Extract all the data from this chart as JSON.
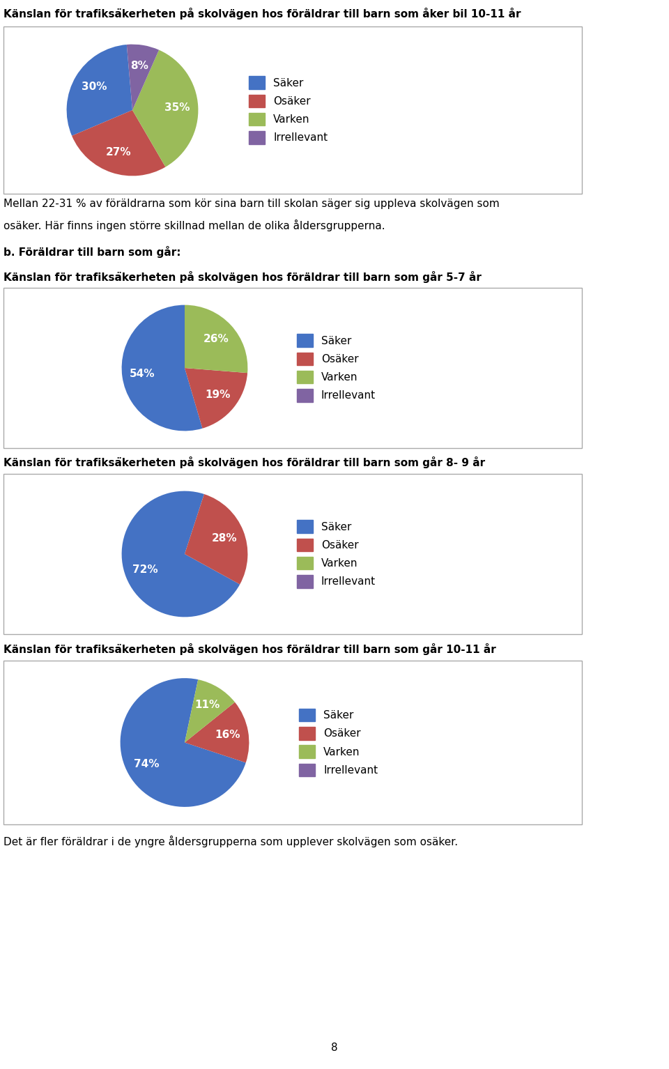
{
  "title1": "Känslan för trafiksäkerheten på skolvägen hos föräldrar till barn som åker bil 10-11 år",
  "pie1_values": [
    30,
    27,
    35,
    8
  ],
  "text_between1_line1": "Mellan 22-31 % av föräldrarna som kör sina barn till skolan säger sig uppleva skolvägen som",
  "text_between1_line2": "osäker. Här finns ingen större skillnad mellan de olika åldersgrupperna.",
  "heading_b": "b. Föräldrar till barn som går:",
  "title2": "Känslan för trafiksäkerheten på skolvägen hos föräldrar till barn som går 5-7 år",
  "pie2_values": [
    54,
    19,
    26,
    0
  ],
  "title3": "Känslan för trafiksäkerheten på skolvägen hos föräldrar till barn som går 8- 9 år",
  "pie3_values": [
    72,
    28,
    0,
    0
  ],
  "title4": "Känslan för trafiksäkerheten på skolvägen hos föräldrar till barn som går 10-11 år",
  "pie4_values": [
    74,
    16,
    11,
    0
  ],
  "text_end": "Det är fler föräldrar i de yngre åldersgrupperna som upplever skolvägen som osäker.",
  "page_number": "8",
  "legend_labels": [
    "Säker",
    "Osäker",
    "Varken",
    "Irrellevant"
  ],
  "colors": [
    "#4472C4",
    "#C0504D",
    "#9BBB59",
    "#8064A2"
  ],
  "pie_label_color": "white",
  "pie_fontsize": 11,
  "title_fontsize": 11,
  "text_fontsize": 11,
  "legend_fontsize": 11,
  "box_edgecolor": "#AAAAAA",
  "bg_color": "white",
  "startangle1": 95,
  "startangle2": 90,
  "startangle3": 72,
  "startangle4": 78
}
